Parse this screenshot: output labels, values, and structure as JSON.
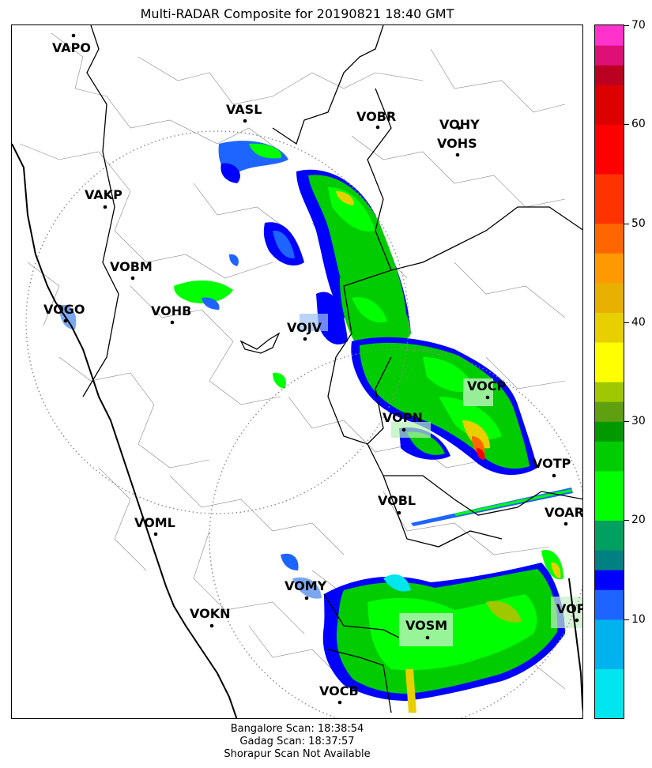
{
  "title": "Multi-RADAR Composite for 20190821 18:40 GMT",
  "colorbar": {
    "ticks": [
      "10",
      "20",
      "30",
      "40",
      "50",
      "60",
      "70"
    ],
    "stops": [
      {
        "v": 0,
        "c": "#00e5ee"
      },
      {
        "v": 5,
        "c": "#00b2ee"
      },
      {
        "v": 10,
        "c": "#1e64ff"
      },
      {
        "v": 13,
        "c": "#0000ff"
      },
      {
        "v": 15,
        "c": "#008080"
      },
      {
        "v": 17,
        "c": "#00a060"
      },
      {
        "v": 20,
        "c": "#00ff00"
      },
      {
        "v": 25,
        "c": "#00cc00"
      },
      {
        "v": 28,
        "c": "#009900"
      },
      {
        "v": 30,
        "c": "#60a010"
      },
      {
        "v": 32,
        "c": "#a0c800"
      },
      {
        "v": 34,
        "c": "#ffff00"
      },
      {
        "v": 38,
        "c": "#e8d000"
      },
      {
        "v": 41,
        "c": "#e8b000"
      },
      {
        "v": 44,
        "c": "#ff9900"
      },
      {
        "v": 47,
        "c": "#ff6600"
      },
      {
        "v": 50,
        "c": "#ff3300"
      },
      {
        "v": 55,
        "c": "#ff0000"
      },
      {
        "v": 60,
        "c": "#dd0000"
      },
      {
        "v": 64,
        "c": "#bb0022"
      },
      {
        "v": 66,
        "c": "#dd1077"
      },
      {
        "v": 68,
        "c": "#ff33cc"
      },
      {
        "v": 70,
        "c": "#ff00ff"
      }
    ]
  },
  "stations": [
    {
      "code": "VAPO"
    },
    {
      "code": "VASL"
    },
    {
      "code": "VOBR"
    },
    {
      "code": "VOHY"
    },
    {
      "code": "VOHS"
    },
    {
      "code": "VAKP"
    },
    {
      "code": "VOBM"
    },
    {
      "code": "VOGO"
    },
    {
      "code": "VOHB"
    },
    {
      "code": "VOJV"
    },
    {
      "code": "VOCP"
    },
    {
      "code": "VOPN"
    },
    {
      "code": "VOTP"
    },
    {
      "code": "VOBL"
    },
    {
      "code": "VOAR"
    },
    {
      "code": "VOML"
    },
    {
      "code": "VOMY"
    },
    {
      "code": "VOKN"
    },
    {
      "code": "VOSM"
    },
    {
      "code": "VOPC"
    },
    {
      "code": "VOCB"
    }
  ],
  "footer": {
    "line1": "Bangalore Scan: 18:38:54",
    "line2": "Gadag Scan: 18:37:57",
    "line3": "Shorapur Scan Not Available"
  },
  "colors": {
    "coast": "#000000",
    "state_border": "#000000",
    "district_border": "#888888",
    "range_ring": "#888888"
  }
}
